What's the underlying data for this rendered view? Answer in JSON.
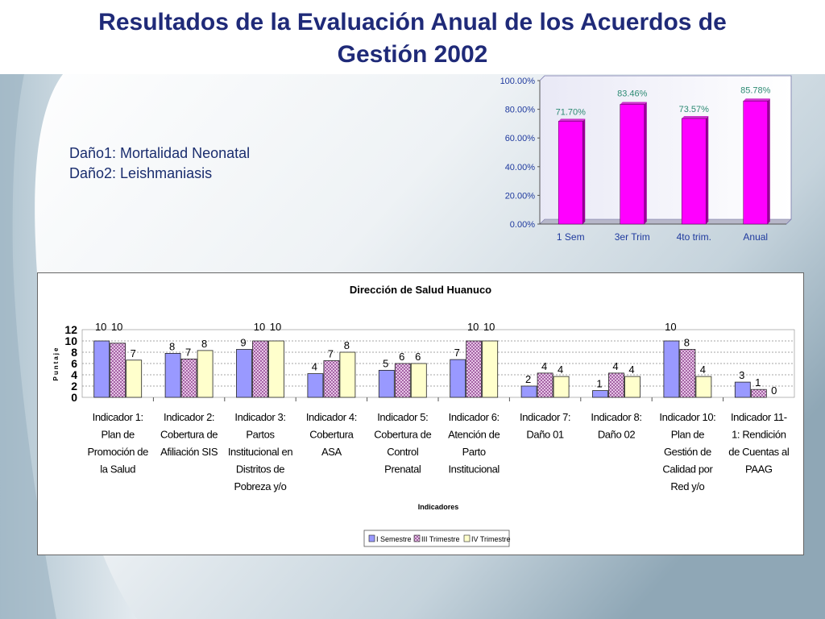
{
  "slide": {
    "title_line1": "Resultados de la Evaluación Anual de los Acuerdos de",
    "title_line2": "Gestión 2002",
    "notes": [
      "Daño1: Mortalidad Neonatal",
      "Daño2: Leishmaniasis"
    ]
  },
  "colors": {
    "title": "#1f2a78",
    "magenta_bar": "#ff00ff",
    "value_labels_top": "#2e8b74",
    "axis_labels_top": "#1f3a9e",
    "series_1": "#9999ff",
    "series_2": "#cc99cc",
    "series_3": "#ffffcc"
  },
  "chart_data": [
    {
      "type": "bar",
      "categories": [
        "1 Sem",
        "3er Trim",
        "4to trim.",
        "Anual"
      ],
      "values": [
        71.7,
        83.46,
        73.57,
        85.78
      ],
      "value_labels": [
        "71.70%",
        "83.46%",
        "73.57%",
        "85.78%"
      ],
      "yticks": [
        "0.00%",
        "20.00%",
        "40.00%",
        "60.00%",
        "80.00%",
        "100.00%"
      ],
      "ylim": [
        0,
        100
      ],
      "title": "",
      "xlabel": "",
      "ylabel": ""
    },
    {
      "type": "bar",
      "title": "Dirección de Salud Huanuco",
      "xlabel": "Indicadores",
      "ylabel": "Puntaje",
      "ylim": [
        0,
        12
      ],
      "yticks": [
        "0",
        "2",
        "4",
        "6",
        "8",
        "10",
        "12"
      ],
      "categories": [
        "Indicador 1: Plan de Promoción de la Salud",
        "Indicador 2: Cobertura de Afiliación SIS",
        "Indicador 3: Partos Institucional en Distritos de Pobreza y/o",
        "Indicador 4: Cobertura ASA",
        "Indicador 5: Cobertura de Control Prenatal",
        "Indicador 6: Atención de Parto Institucional",
        "Indicador 7: Daño 01",
        "Indicador 8: Daño 02",
        "Indicador 10: Plan de Gestión de Calidad por Red y/o",
        "Indicador 11-1: Rendición de Cuentas al PAAG"
      ],
      "category_lines": [
        [
          "Indicador 1:",
          "Plan de",
          "Promoción de",
          "la Salud"
        ],
        [
          "Indicador 2:",
          "Cobertura de",
          "Afiliación SIS"
        ],
        [
          "Indicador 3:",
          "Partos",
          "Institucional en",
          "Distritos de",
          "Pobreza y/o"
        ],
        [
          "Indicador 4:",
          "Cobertura",
          "ASA"
        ],
        [
          "Indicador 5:",
          "Cobertura de",
          "Control",
          "Prenatal"
        ],
        [
          "Indicador 6:",
          "Atención de",
          "Parto",
          "Institucional"
        ],
        [
          "Indicador 7:",
          "Daño 01"
        ],
        [
          "Indicador 8:",
          "Daño 02"
        ],
        [
          "Indicador 10:",
          "Plan de",
          "Gestión de",
          "Calidad por",
          "Red y/o"
        ],
        [
          "Indicador 11-",
          "1: Rendición",
          "de Cuentas al",
          "PAAG"
        ]
      ],
      "series": [
        {
          "name": "I Semestre",
          "values": [
            10,
            7.8,
            8.5,
            4.2,
            4.8,
            6.7,
            2,
            1.2,
            10,
            2.7
          ],
          "labels": [
            "10",
            "8",
            "9",
            "4",
            "5",
            "7",
            "2",
            "1",
            "10",
            "3"
          ]
        },
        {
          "name": "III Trimestre",
          "values": [
            9.6,
            6.8,
            10,
            6.5,
            6,
            10,
            4.3,
            4.3,
            8.5,
            1.4
          ],
          "labels": [
            "10",
            "7",
            "10",
            "7",
            "6",
            "10",
            "4",
            "4",
            "8",
            "1"
          ]
        },
        {
          "name": "IV Trimestre",
          "values": [
            6.6,
            8.3,
            10,
            8,
            6,
            10,
            3.7,
            3.7,
            3.7,
            0
          ],
          "labels": [
            "7",
            "8",
            "10",
            "8",
            "6",
            "10",
            "4",
            "4",
            "4",
            "0"
          ]
        }
      ],
      "legend": "bottom"
    }
  ]
}
